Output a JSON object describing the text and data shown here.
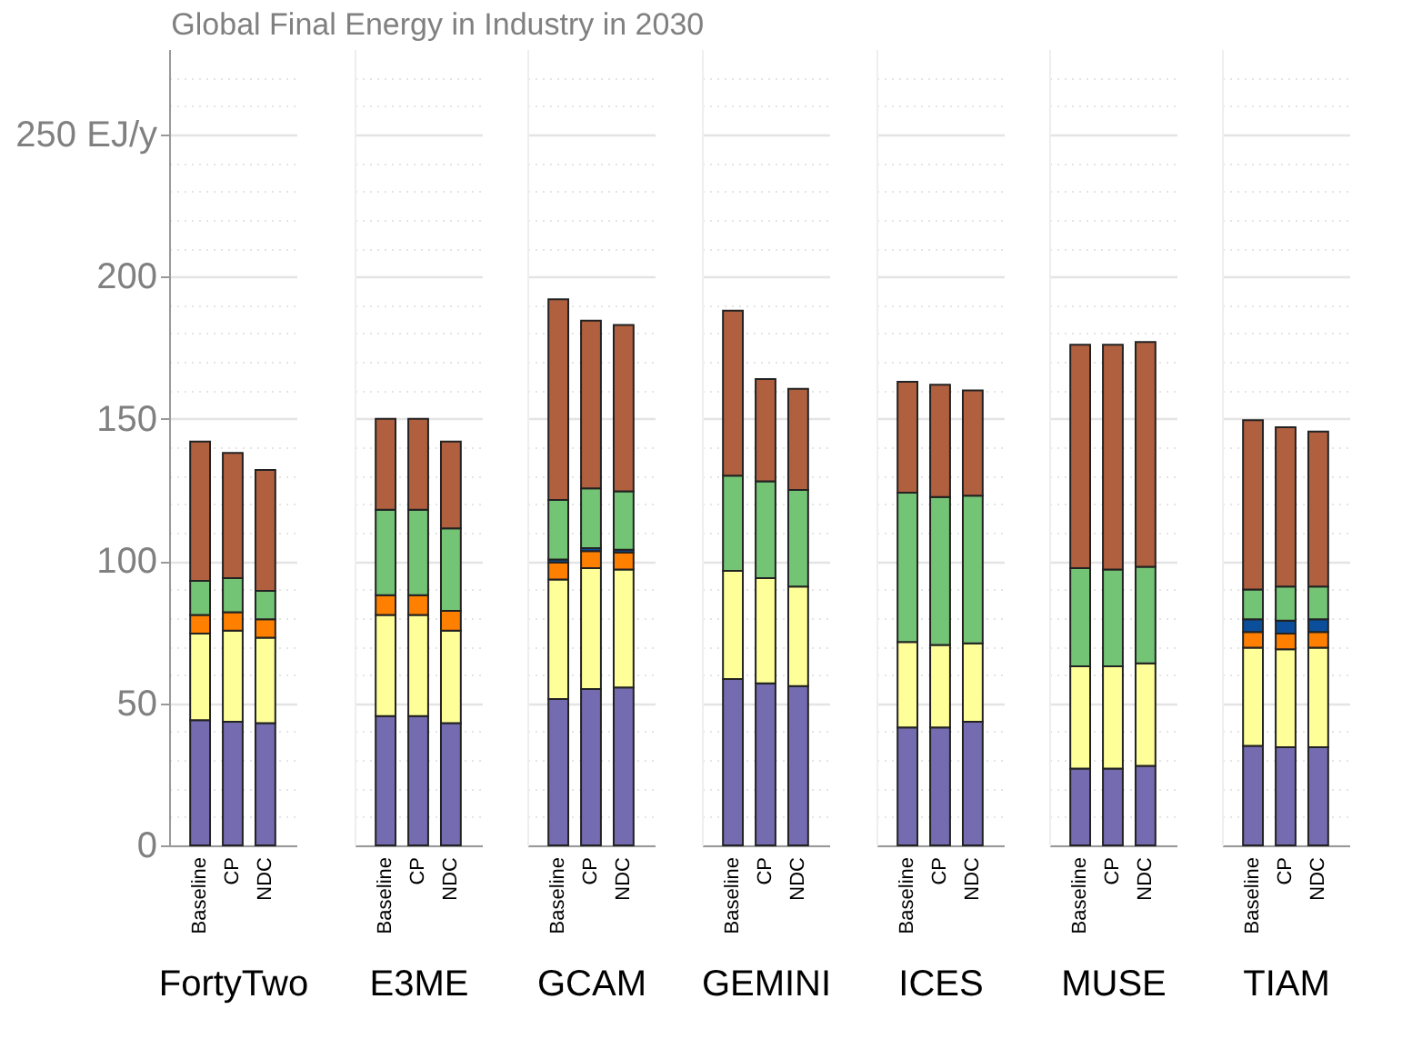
{
  "chart_data": [
    {
      "type": "bar",
      "stacked": true,
      "title": "Global Final Energy in Industry in 2030",
      "xlabel": "FortyTwo",
      "categories": [
        "Baseline",
        "CP",
        "NDC"
      ],
      "ylim": [
        0,
        280
      ],
      "yticks": [
        0,
        {
          "value": 10,
          "label": null
        },
        {
          "value": 20,
          "label": null
        },
        {
          "value": 30,
          "label": null
        },
        {
          "value": 40,
          "label": null
        },
        50,
        {
          "value": 60,
          "label": null
        },
        {
          "value": 70,
          "label": null
        },
        {
          "value": 80,
          "label": null
        },
        {
          "value": 90,
          "label": null
        },
        100,
        {
          "value": 110,
          "label": null
        },
        {
          "value": 120,
          "label": null
        },
        {
          "value": 130,
          "label": null
        },
        {
          "value": 140,
          "label": null
        },
        150,
        {
          "value": 160,
          "label": null
        },
        {
          "value": 170,
          "label": null
        },
        {
          "value": 180,
          "label": null
        },
        {
          "value": 190,
          "label": null
        },
        200,
        {
          "value": 210,
          "label": null
        },
        {
          "value": 220,
          "label": null
        },
        {
          "value": 230,
          "label": null
        },
        {
          "value": 240,
          "label": null
        },
        {
          "value": 250,
          "label": "250 EJ/y"
        },
        {
          "value": 260,
          "label": null
        },
        {
          "value": 270,
          "label": null
        }
      ],
      "grid": "y",
      "legend": false,
      "series": [
        {
          "color": "#756bb1",
          "values": [
            44,
            43.5,
            43
          ]
        },
        {
          "color": "#ffff99",
          "values": [
            30.5,
            32,
            30
          ]
        },
        {
          "color": "#ff7f00",
          "values": [
            6.5,
            6.5,
            6.5
          ]
        },
        {
          "color": "#74c476",
          "values": [
            12,
            12,
            10
          ]
        },
        {
          "color": "#b0603f",
          "values": [
            49,
            44,
            42.5
          ]
        }
      ]
    },
    {
      "type": "bar",
      "stacked": true,
      "xlabel": "E3ME",
      "categories": [
        "Baseline",
        "CP",
        "NDC"
      ],
      "ylim": [
        0,
        280
      ],
      "tick_labels": "x",
      "grid": "y",
      "legend": false,
      "series": [
        {
          "color": "#756bb1",
          "values": [
            45.5,
            45.5,
            43
          ]
        },
        {
          "color": "#ffff99",
          "values": [
            35.5,
            35.5,
            32.5
          ]
        },
        {
          "color": "#ff7f00",
          "values": [
            7,
            7,
            7
          ]
        },
        {
          "color": "#74c476",
          "values": [
            30,
            30,
            29
          ]
        },
        {
          "color": "#b0603f",
          "values": [
            32,
            32,
            30.5
          ]
        }
      ]
    },
    {
      "type": "bar",
      "stacked": true,
      "xlabel": "GCAM",
      "categories": [
        "Baseline",
        "CP",
        "NDC"
      ],
      "ylim": [
        0,
        280
      ],
      "tick_labels": "x",
      "grid": "y",
      "legend": false,
      "series": [
        {
          "color": "#756bb1",
          "values": [
            51.5,
            55,
            55.5
          ]
        },
        {
          "color": "#ffff99",
          "values": [
            42,
            42.5,
            41.5
          ]
        },
        {
          "color": "#ff7f00",
          "values": [
            6,
            6,
            6
          ]
        },
        {
          "color": "#0b4f9c",
          "values": [
            1,
            1,
            1
          ]
        },
        {
          "color": "#74c476",
          "values": [
            21,
            21,
            20.5
          ]
        },
        {
          "color": "#b0603f",
          "values": [
            70.5,
            59,
            58.5
          ]
        }
      ]
    },
    {
      "type": "bar",
      "stacked": true,
      "xlabel": "GEMINI",
      "categories": [
        "Baseline",
        "CP",
        "NDC"
      ],
      "ylim": [
        0,
        280
      ],
      "tick_labels": "x",
      "grid": "y",
      "legend": false,
      "series": [
        {
          "color": "#756bb1",
          "values": [
            58.5,
            57,
            56
          ]
        },
        {
          "color": "#ffff99",
          "values": [
            38,
            37,
            35
          ]
        },
        {
          "color": "#74c476",
          "values": [
            33.5,
            34,
            34
          ]
        },
        {
          "color": "#b0603f",
          "values": [
            58,
            36,
            35.5
          ]
        }
      ]
    },
    {
      "type": "bar",
      "stacked": true,
      "xlabel": "ICES",
      "categories": [
        "Baseline",
        "CP",
        "NDC"
      ],
      "ylim": [
        0,
        280
      ],
      "tick_labels": "x",
      "grid": "y",
      "legend": false,
      "series": [
        {
          "color": "#756bb1",
          "values": [
            41.5,
            41.5,
            43.5
          ]
        },
        {
          "color": "#ffff99",
          "values": [
            30,
            29,
            27.5
          ]
        },
        {
          "color": "#74c476",
          "values": [
            52.5,
            52,
            52
          ]
        },
        {
          "color": "#b0603f",
          "values": [
            39,
            39.5,
            37
          ]
        }
      ]
    },
    {
      "type": "bar",
      "stacked": true,
      "xlabel": "MUSE",
      "categories": [
        "Baseline",
        "CP",
        "NDC"
      ],
      "ylim": [
        0,
        280
      ],
      "tick_labels": "x",
      "grid": "y",
      "legend": false,
      "series": [
        {
          "color": "#756bb1",
          "values": [
            27,
            27,
            28
          ]
        },
        {
          "color": "#ffff99",
          "values": [
            36,
            36,
            36
          ]
        },
        {
          "color": "#74c476",
          "values": [
            34.5,
            34,
            34
          ]
        },
        {
          "color": "#b0603f",
          "values": [
            78.5,
            79,
            79
          ]
        }
      ]
    },
    {
      "type": "bar",
      "stacked": true,
      "xlabel": "TIAM",
      "categories": [
        "Baseline",
        "CP",
        "NDC"
      ],
      "ylim": [
        0,
        280
      ],
      "tick_labels": "x",
      "grid": "y",
      "legend": false,
      "series": [
        {
          "color": "#756bb1",
          "values": [
            35,
            34.5,
            34.5
          ]
        },
        {
          "color": "#ffff99",
          "values": [
            34.5,
            34.5,
            35
          ]
        },
        {
          "color": "#ff7f00",
          "values": [
            5.5,
            5.5,
            5.5
          ]
        },
        {
          "color": "#0b4f9c",
          "values": [
            4.5,
            4.5,
            4.5
          ]
        },
        {
          "color": "#74c476",
          "values": [
            10.5,
            12,
            11.5
          ]
        },
        {
          "color": "#b0603f",
          "values": [
            59.5,
            56,
            54.5
          ]
        }
      ]
    }
  ]
}
